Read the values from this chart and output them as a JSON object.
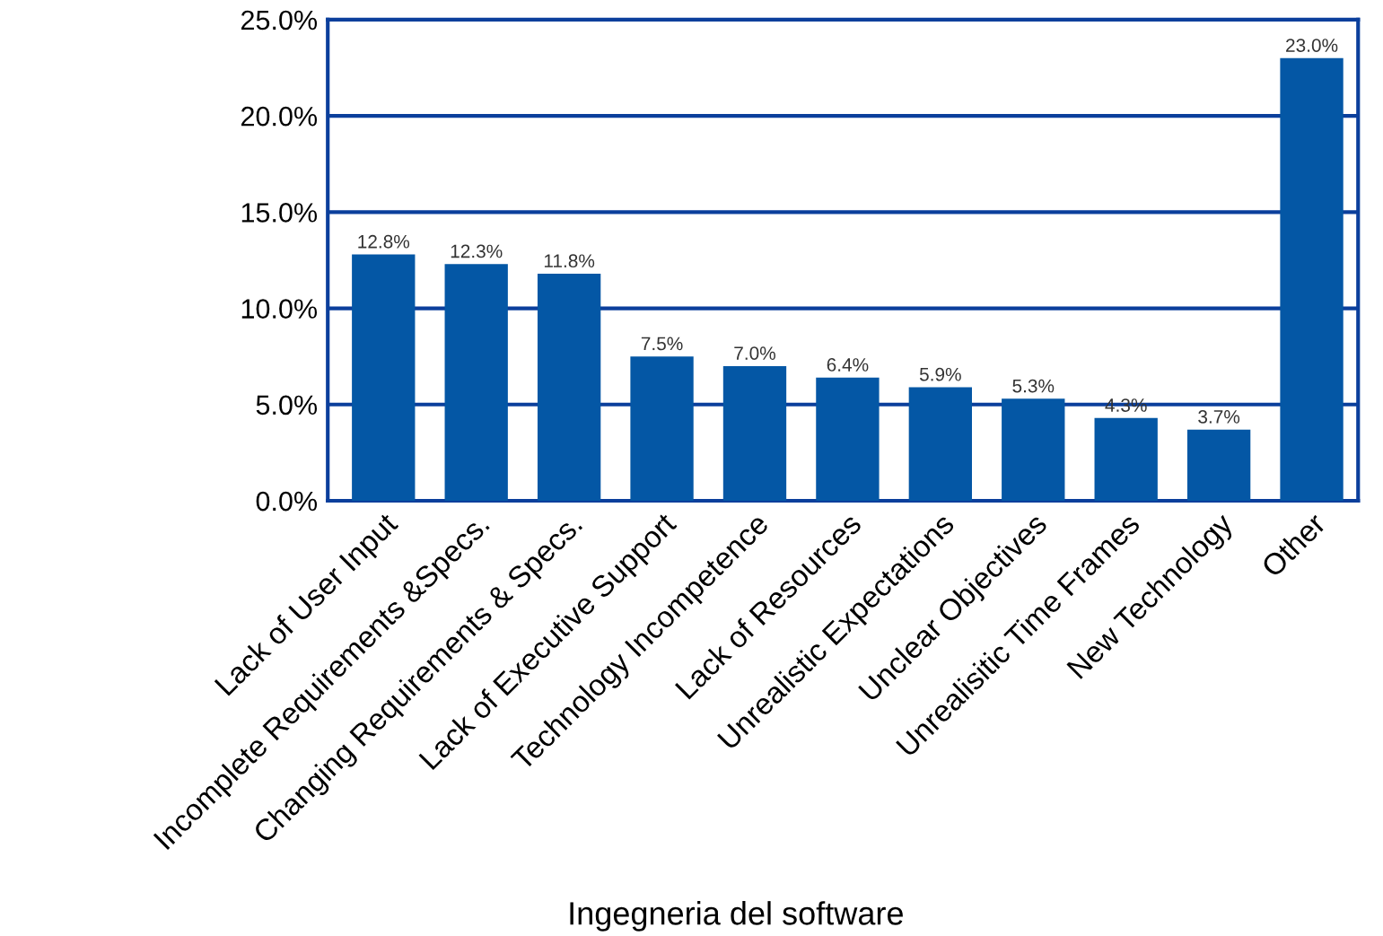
{
  "chart_data": {
    "type": "bar",
    "categories": [
      "Lack of User Input",
      "Incomplete Requirements &Specs.",
      "Changing Requirements & Specs.",
      "Lack of Executive Support",
      "Technology Incompetence",
      "Lack of Resources",
      "Unrealistic Expectations",
      "Unclear Objectives",
      "Unrealisitic Time Frames",
      "New Technology",
      "Other"
    ],
    "values": [
      12.8,
      12.3,
      11.8,
      7.5,
      7.0,
      6.4,
      5.9,
      5.3,
      4.3,
      3.7,
      23.0
    ],
    "value_labels": [
      "12.8%",
      "12.3%",
      "11.8%",
      "7.5%",
      "7.0%",
      "6.4%",
      "5.9%",
      "5.3%",
      "4.3%",
      "3.7%",
      "23.0%"
    ],
    "color": "#0457a5",
    "ylim": [
      0,
      25
    ],
    "yticks": [
      {
        "value": 0,
        "label": "0.0%"
      },
      {
        "value": 5,
        "label": "5.0%"
      },
      {
        "value": 10,
        "label": "10.0%"
      },
      {
        "value": 15,
        "label": "15.0%"
      },
      {
        "value": 20,
        "label": "20.0%"
      },
      {
        "value": 25,
        "label": "25.0%"
      }
    ],
    "grid": "y",
    "annotations": [
      "Ingegneria del software"
    ]
  }
}
